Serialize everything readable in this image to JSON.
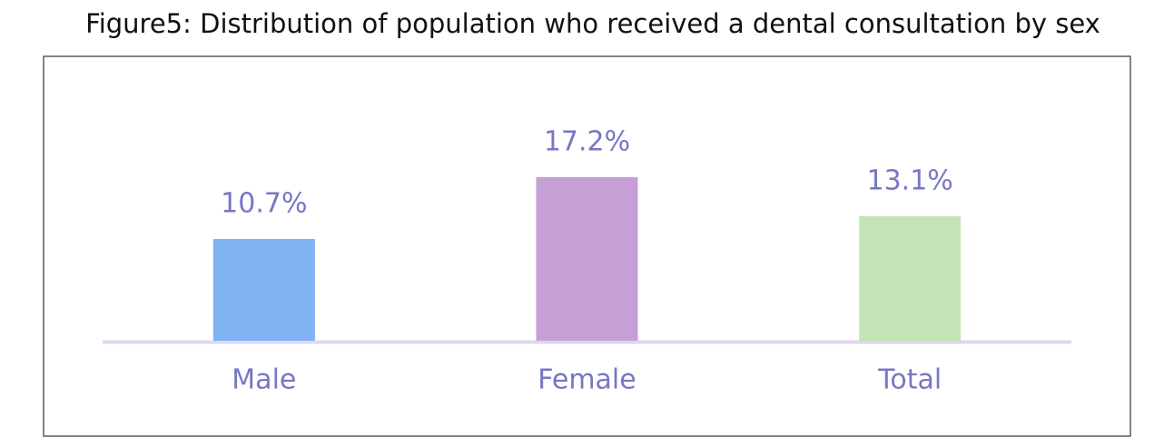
{
  "chart_data": {
    "type": "bar",
    "title": "Figure5: Distribution of population who received a dental consultation by sex",
    "categories": [
      "Male",
      "Female",
      "Total"
    ],
    "values": [
      10.7,
      17.2,
      13.1
    ],
    "value_labels": [
      "10.7%",
      "17.2%",
      "13.1%"
    ],
    "colors": [
      "#80b2f3",
      "#c59fd6",
      "#c4e4b5"
    ]
  }
}
